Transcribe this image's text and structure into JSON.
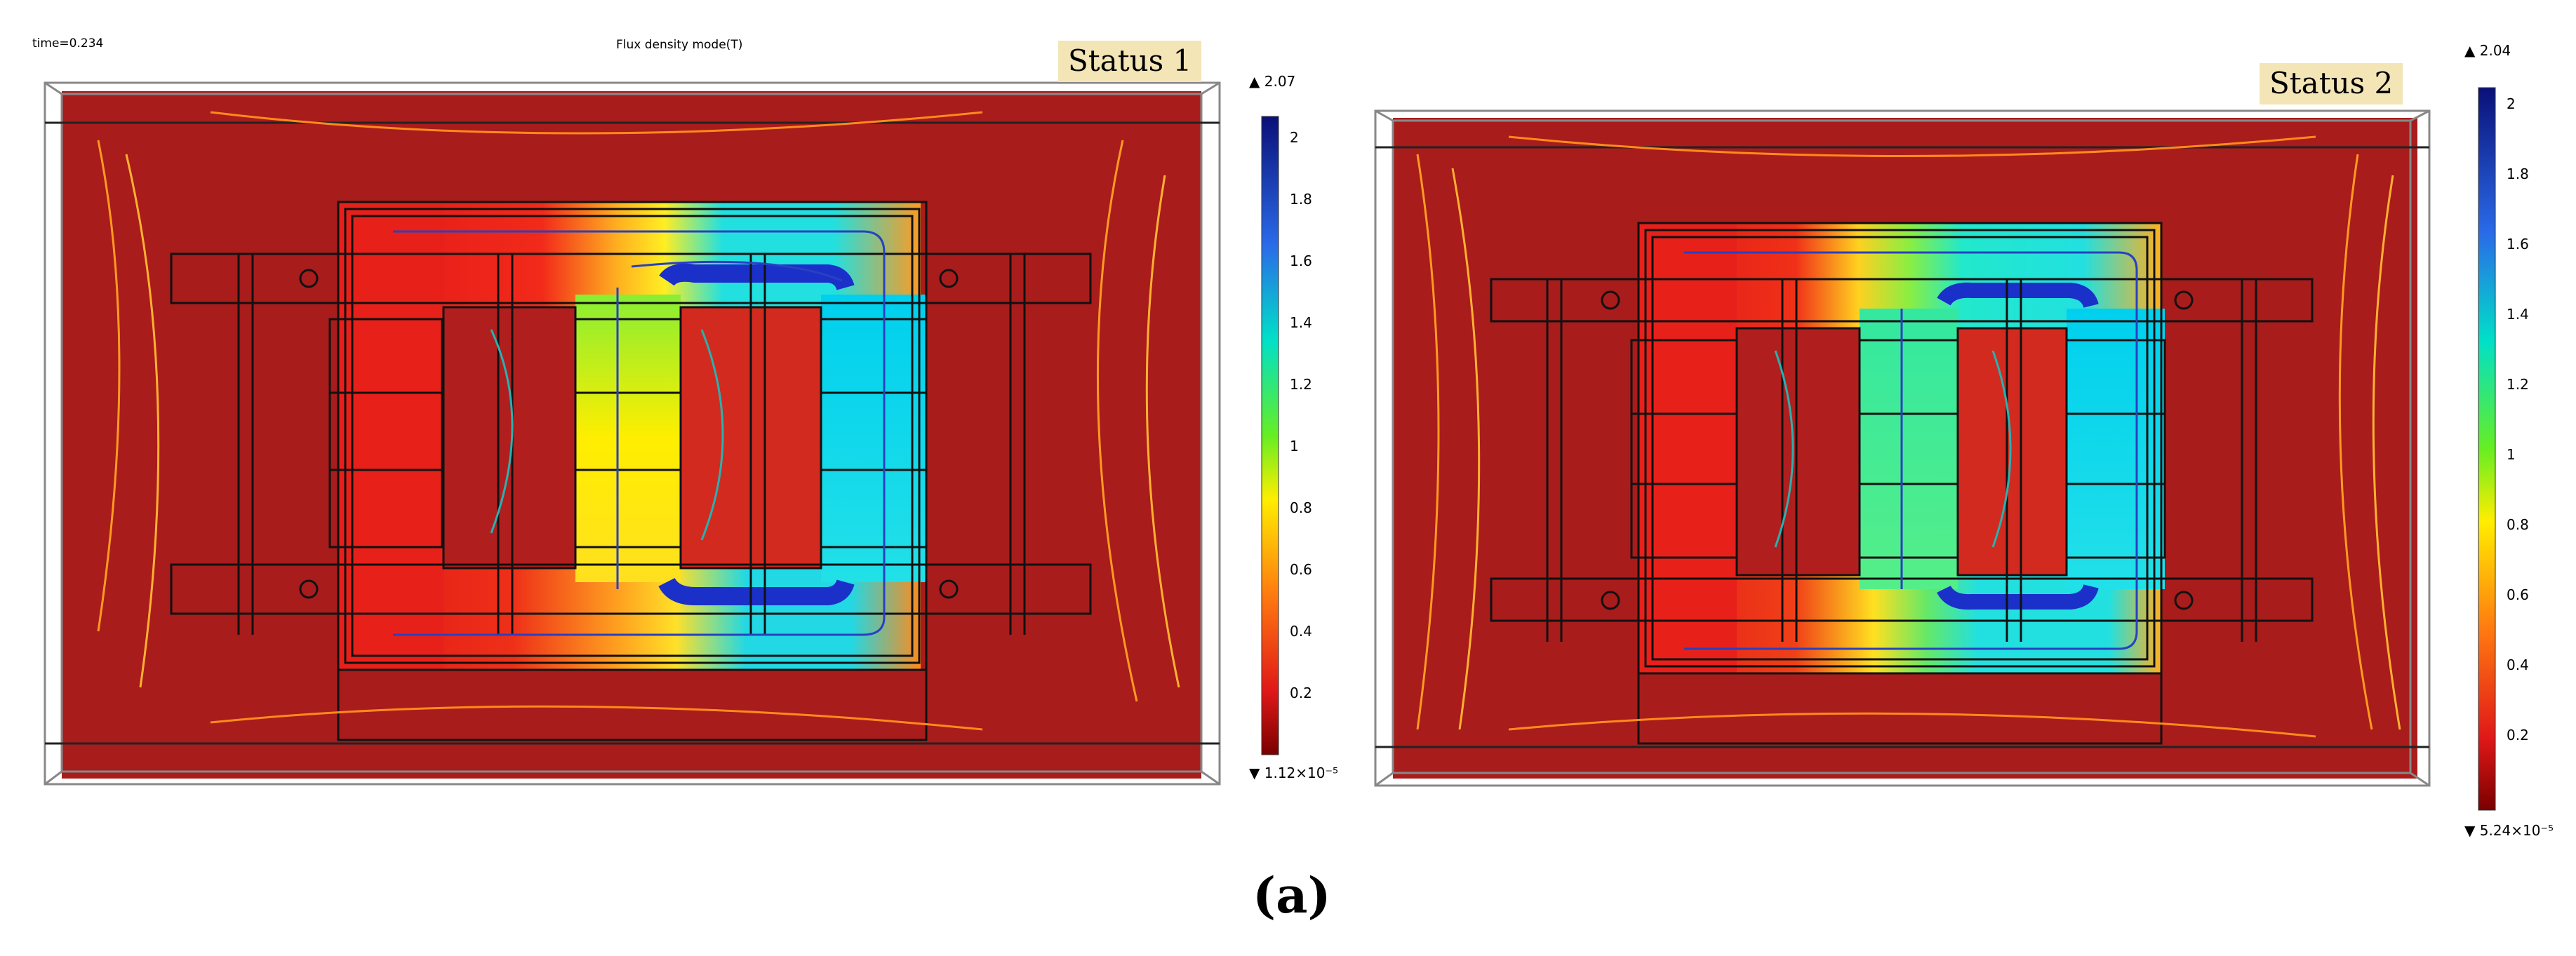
{
  "panel_left": {
    "time_label": "time=0.234",
    "plot_title": "Flux density mode(T)",
    "status_label": "Status 1",
    "colorbar": {
      "max_label": "▲ 2.07",
      "min_label": "▼ 1.12×10⁻⁵",
      "ticks": [
        "2",
        "1.8",
        "1.6",
        "1.4",
        "1.2",
        "1",
        "0.8",
        "0.6",
        "0.4",
        "0.2"
      ]
    }
  },
  "panel_right": {
    "status_label": "Status 2",
    "colorbar": {
      "max_label": "▲ 2.04",
      "min_label": "▼ 5.24×10⁻⁵",
      "ticks": [
        "2",
        "1.8",
        "1.6",
        "1.4",
        "1.2",
        "1",
        "0.8",
        "0.6",
        "0.4",
        "0.2"
      ]
    }
  },
  "caption": "(a)",
  "colors": {
    "background_field": "#a31a1a",
    "low_flux": "#e01818",
    "mid_flux": "#ffee00",
    "high_flux": "#00d8e8",
    "max_flux": "#0a1aa8"
  }
}
